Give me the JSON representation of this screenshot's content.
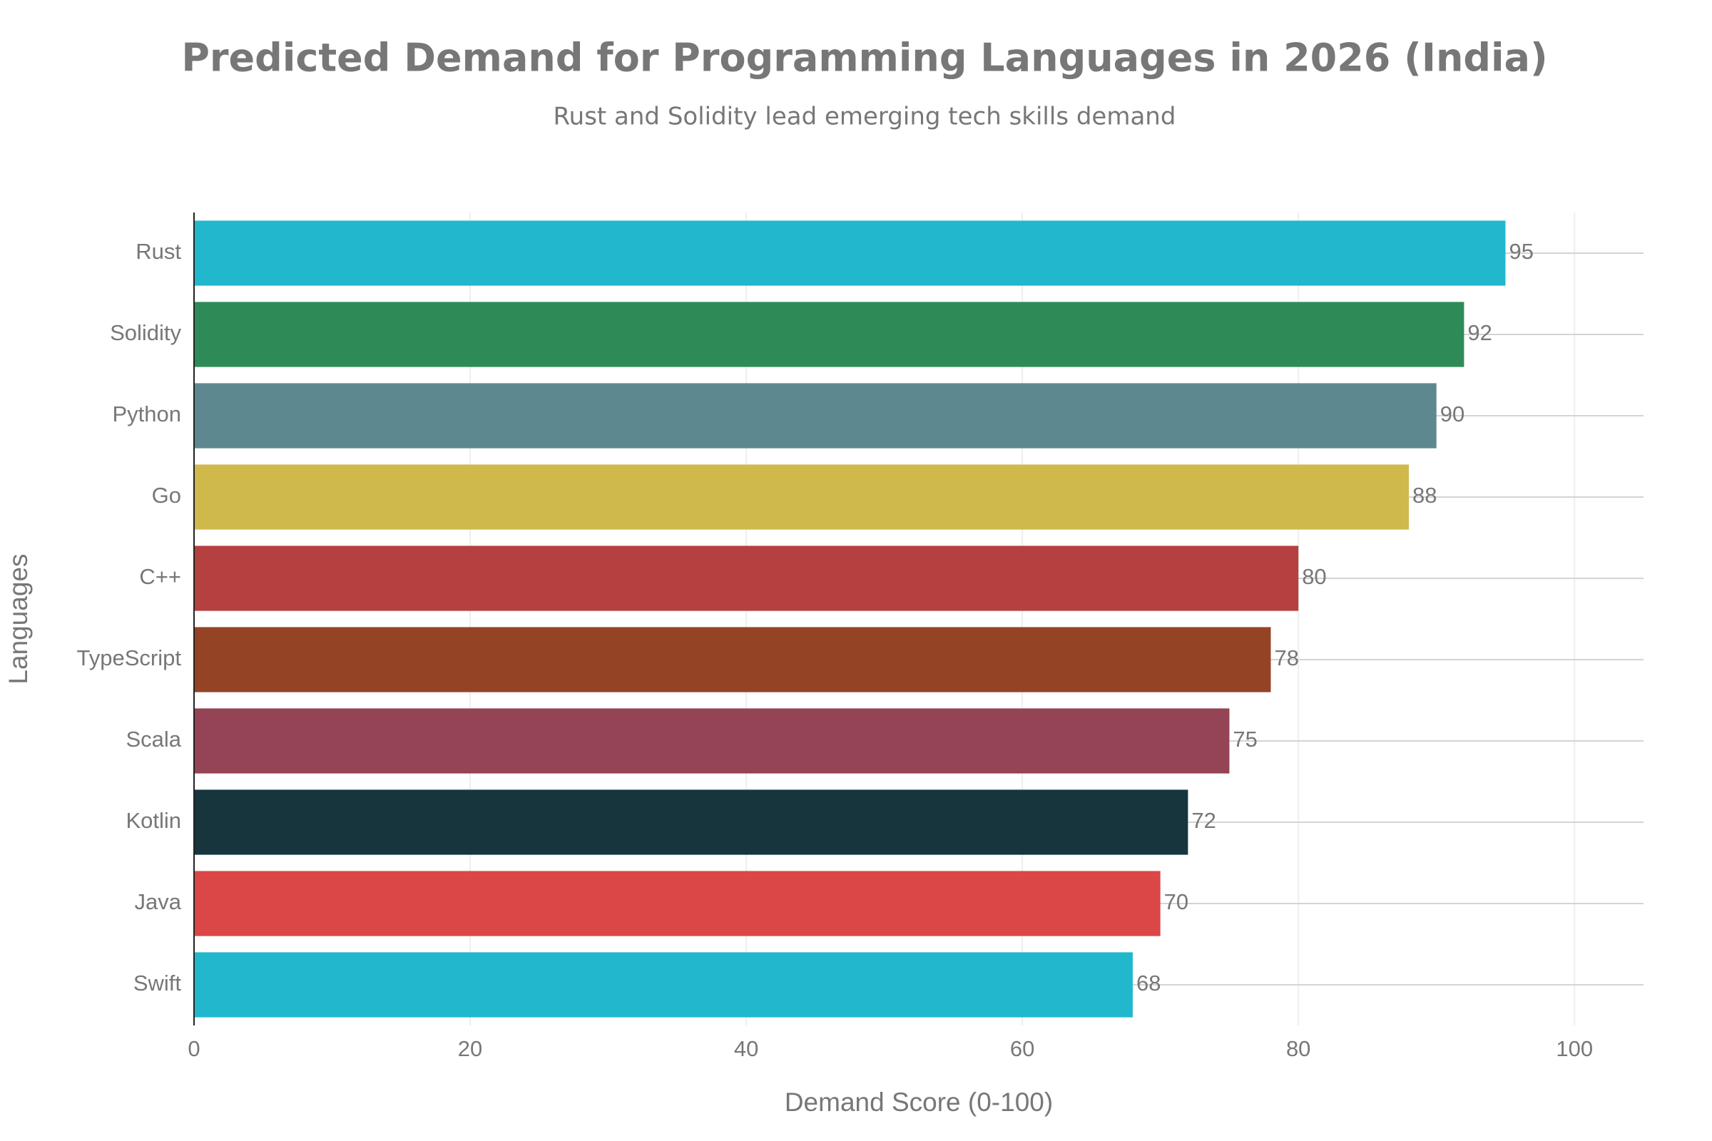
{
  "chart_data": {
    "type": "bar",
    "orientation": "horizontal",
    "title": "Predicted Demand for Programming Languages in 2026 (India)",
    "subtitle": "Rust and Solidity lead emerging tech skills demand",
    "x_label": "Demand Score (0-100)",
    "y_label": "Languages",
    "categories": [
      "Rust",
      "Solidity",
      "Python",
      "Go",
      "C++",
      "TypeScript",
      "Scala",
      "Kotlin",
      "Java",
      "Swift"
    ],
    "values": [
      95,
      92,
      90,
      88,
      80,
      78,
      75,
      72,
      70,
      68
    ],
    "colors": [
      "#21b8cd",
      "#2e8b57",
      "#5e8890",
      "#d0b94b",
      "#b44040",
      "#944424",
      "#944454",
      "#16353c",
      "#db4646",
      "#21b8cd"
    ],
    "xlim": [
      0,
      105
    ],
    "xticks": [
      0,
      20,
      40,
      60,
      80,
      100
    ],
    "grid": true
  }
}
